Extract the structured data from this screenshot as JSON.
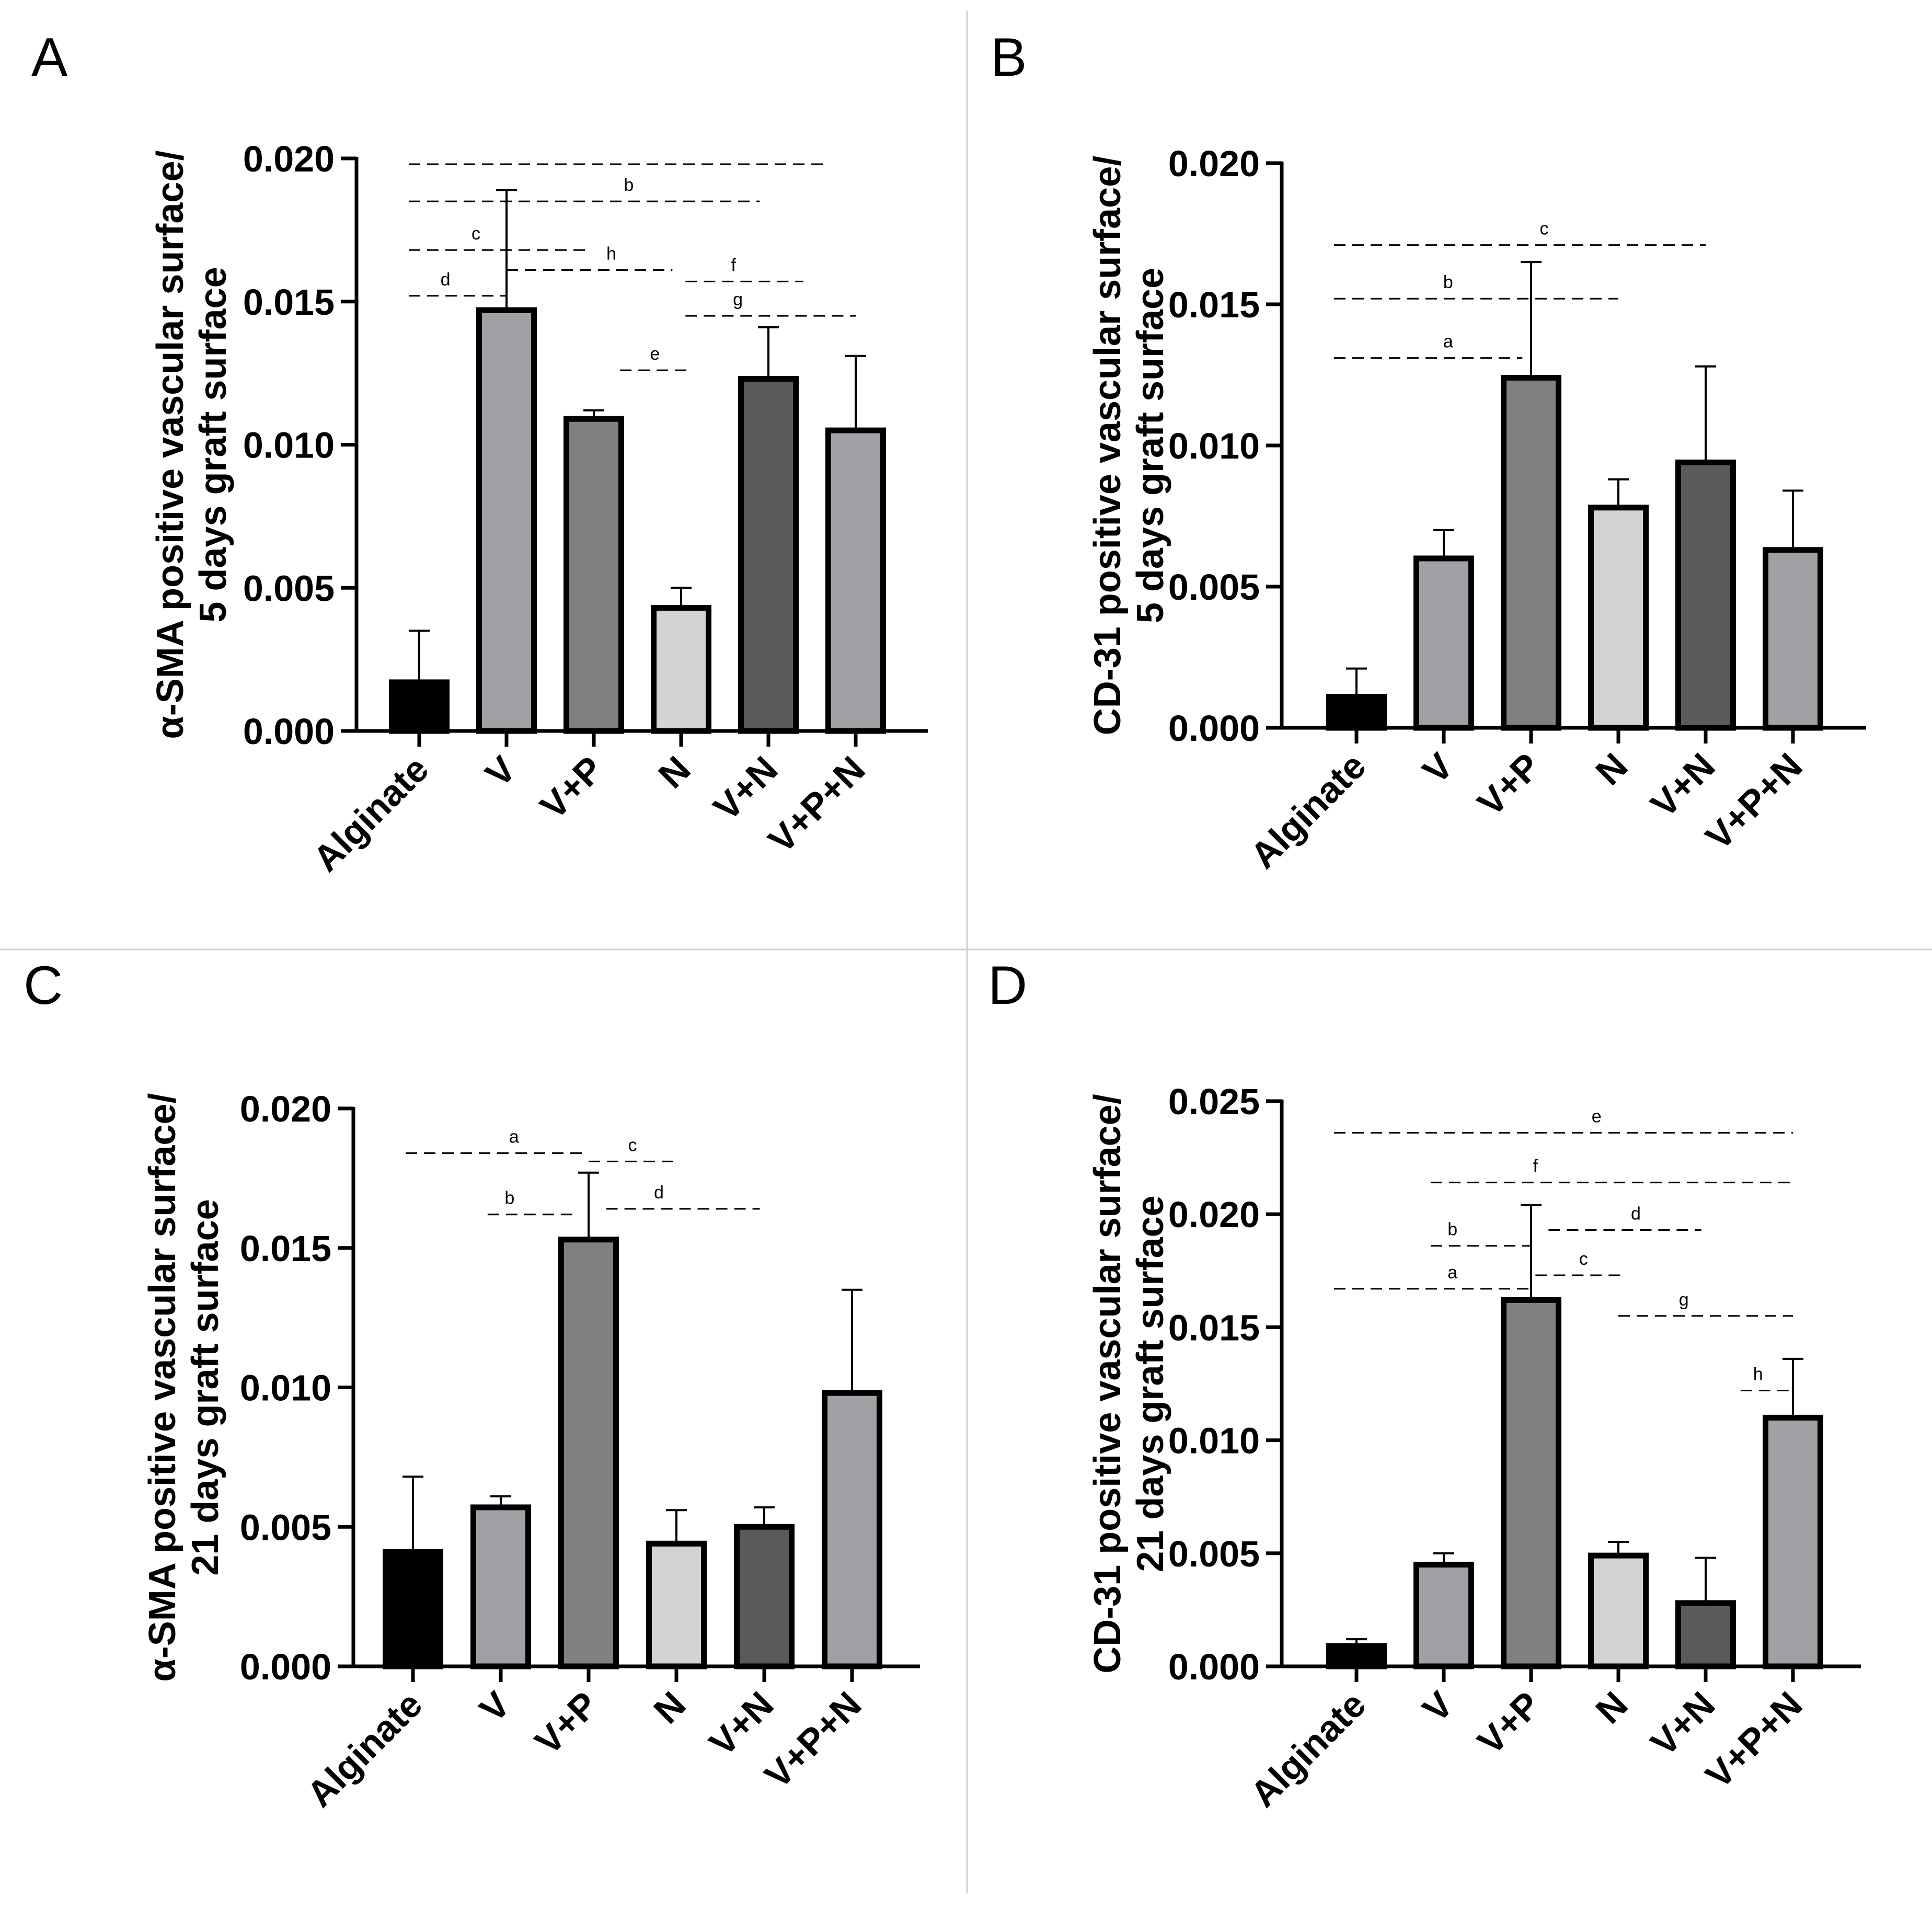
{
  "chart_data": [
    {
      "panel": "A",
      "type": "bar",
      "categories": [
        "Alginate",
        "V",
        "V+P",
        "N",
        "V+N",
        "V+P+N"
      ],
      "values": [
        0.0017,
        0.0147,
        0.0109,
        0.0043,
        0.0123,
        0.0105
      ],
      "error_upper": [
        0.0035,
        0.0189,
        0.0112,
        0.005,
        0.0141,
        0.0131
      ],
      "colors": [
        "#000000",
        "#a0a0a5",
        "#808080",
        "#d3d3d3",
        "#5a5a5a",
        "#a0a0a5"
      ],
      "ylabel": [
        "α-SMA positive vascular surface/",
        "5 days graft surface"
      ],
      "ylim": [
        0,
        0.02
      ],
      "yticks": [
        "0.000",
        "0.005",
        "0.010",
        "0.015",
        "0.020"
      ],
      "significance": [
        {
          "label": "",
          "from": 0,
          "to": 4.65,
          "y": 0.0198,
          "label_at": null
        },
        {
          "label": "b",
          "from": 0,
          "to": 3.9,
          "y": 0.0185,
          "label_at": 2.4
        },
        {
          "label": "c",
          "from": 0,
          "to": 1.9,
          "y": 0.0168,
          "label_at": 0.65
        },
        {
          "label": "h",
          "from": 1.0,
          "to": 2.9,
          "y": 0.0161,
          "label_at": 2.2
        },
        {
          "label": "d",
          "from": 0,
          "to": 1.0,
          "y": 0.0152,
          "label_at": 0.3
        },
        {
          "label": "f",
          "from": 3.05,
          "to": 4.4,
          "y": 0.0157,
          "label_at": 3.6
        },
        {
          "label": "g",
          "from": 3.05,
          "to": 5.0,
          "y": 0.0145,
          "label_at": 3.65
        },
        {
          "label": "e",
          "from": 2.3,
          "to": 3.1,
          "y": 0.0126,
          "label_at": 2.7
        }
      ]
    },
    {
      "panel": "B",
      "type": "bar",
      "categories": [
        "Alginate",
        "V",
        "V+P",
        "N",
        "V+N",
        "V+P+N"
      ],
      "values": [
        0.0011,
        0.006,
        0.0124,
        0.0078,
        0.0094,
        0.0063
      ],
      "error_upper": [
        0.0021,
        0.007,
        0.0165,
        0.0088,
        0.0128,
        0.0084
      ],
      "colors": [
        "#000000",
        "#a0a0a5",
        "#808080",
        "#d3d3d3",
        "#5a5a5a",
        "#a0a0a5"
      ],
      "ylabel": [
        "CD-31 positive vascular surface/",
        "5 days graft surface"
      ],
      "ylim": [
        0,
        0.02
      ],
      "yticks": [
        "0.000",
        "0.005",
        "0.010",
        "0.015",
        "0.020"
      ],
      "significance": [
        {
          "label": "c",
          "from": 0,
          "to": 4.0,
          "y": 0.0171,
          "label_at": 2.15
        },
        {
          "label": "b",
          "from": 0,
          "to": 3.0,
          "y": 0.0152,
          "label_at": 1.05
        },
        {
          "label": "a",
          "from": 0,
          "to": 1.9,
          "y": 0.0131,
          "label_at": 1.05
        }
      ]
    },
    {
      "panel": "C",
      "type": "bar",
      "categories": [
        "Alginate",
        "V",
        "V+P",
        "N",
        "V+N",
        "V+P+N"
      ],
      "values": [
        0.0041,
        0.0057,
        0.0153,
        0.0044,
        0.005,
        0.0098
      ],
      "error_upper": [
        0.0068,
        0.0061,
        0.0177,
        0.0056,
        0.0057,
        0.0135
      ],
      "colors": [
        "#000000",
        "#a0a0a5",
        "#808080",
        "#d3d3d3",
        "#5a5a5a",
        "#a0a0a5"
      ],
      "ylabel": [
        "α-SMA positive vascular surface/",
        "21 days graft surface"
      ],
      "ylim": [
        0,
        0.02
      ],
      "yticks": [
        "0.000",
        "0.005",
        "0.010",
        "0.015",
        "0.020"
      ],
      "significance": [
        {
          "label": "a",
          "from": 0,
          "to": 2.0,
          "y": 0.0184,
          "label_at": 1.15
        },
        {
          "label": "c",
          "from": 2.0,
          "to": 3.0,
          "y": 0.0181,
          "label_at": 2.5
        },
        {
          "label": "b",
          "from": 0.85,
          "to": 1.85,
          "y": 0.0162,
          "label_at": 1.1
        },
        {
          "label": "d",
          "from": 2.2,
          "to": 3.95,
          "y": 0.0164,
          "label_at": 2.8
        }
      ]
    },
    {
      "panel": "D",
      "type": "bar",
      "categories": [
        "Alginate",
        "V",
        "V+P",
        "N",
        "V+N",
        "V+P+N"
      ],
      "values": [
        0.0009,
        0.0045,
        0.0162,
        0.0049,
        0.0028,
        0.011
      ],
      "error_upper": [
        0.0012,
        0.005,
        0.0204,
        0.0055,
        0.0048,
        0.0136
      ],
      "colors": [
        "#000000",
        "#a0a0a5",
        "#808080",
        "#d3d3d3",
        "#5a5a5a",
        "#a0a0a5"
      ],
      "ylabel": [
        "CD-31 positive vascular surface/",
        "21 days graft surface"
      ],
      "ylim": [
        0,
        0.025
      ],
      "yticks": [
        "0.000",
        "0.005",
        "0.010",
        "0.015",
        "0.020",
        "0.025"
      ],
      "significance": [
        {
          "label": "e",
          "from": 0,
          "to": 5.0,
          "y": 0.0236,
          "label_at": 2.75
        },
        {
          "label": "f",
          "from": 0.85,
          "to": 5.0,
          "y": 0.0214,
          "label_at": 2.05
        },
        {
          "label": "d",
          "from": 2.2,
          "to": 3.95,
          "y": 0.0193,
          "label_at": 3.2
        },
        {
          "label": "b",
          "from": 0.85,
          "to": 2.0,
          "y": 0.0186,
          "label_at": 1.1
        },
        {
          "label": "c",
          "from": 2.05,
          "to": 3.1,
          "y": 0.0173,
          "label_at": 2.6
        },
        {
          "label": "a",
          "from": 0,
          "to": 2.0,
          "y": 0.0167,
          "label_at": 1.1
        },
        {
          "label": "g",
          "from": 3.0,
          "to": 5.0,
          "y": 0.0155,
          "label_at": 3.75
        },
        {
          "label": "h",
          "from": 4.4,
          "to": 5.0,
          "y": 0.0122,
          "label_at": 4.6
        }
      ]
    }
  ]
}
